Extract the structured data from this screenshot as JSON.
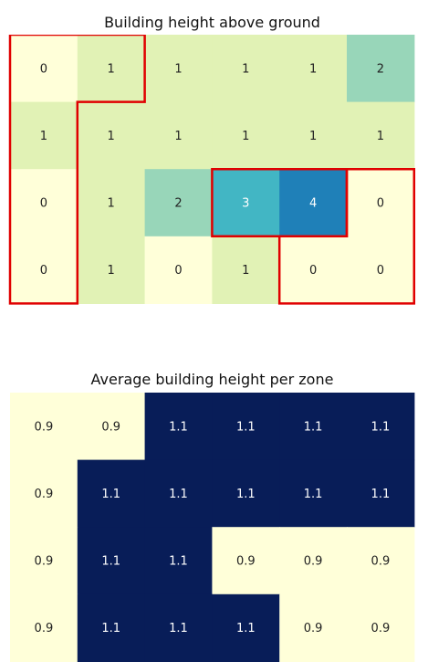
{
  "chart_data": [
    {
      "type": "heatmap",
      "title": "Building height above ground",
      "rows": 4,
      "cols": 6,
      "values": [
        [
          0,
          1,
          1,
          1,
          1,
          2
        ],
        [
          1,
          1,
          1,
          1,
          1,
          1
        ],
        [
          0,
          1,
          2,
          3,
          4,
          0
        ],
        [
          0,
          1,
          0,
          1,
          0,
          0
        ]
      ],
      "labels": [
        [
          "0",
          "1",
          "1",
          "1",
          "1",
          "2"
        ],
        [
          "1",
          "1",
          "1",
          "1",
          "1",
          "1"
        ],
        [
          "0",
          "1",
          "2",
          "3",
          "4",
          "0"
        ],
        [
          "0",
          "1",
          "0",
          "1",
          "0",
          "0"
        ]
      ],
      "colorscale": "YlGnBu",
      "vmin": 0,
      "vmax": 4,
      "grid": false,
      "zones_outlined": {
        "color": "#e00000",
        "zones": [
          [
            [
              0,
              0
            ],
            [
              0,
              1
            ],
            [
              1,
              0
            ],
            [
              2,
              0
            ],
            [
              3,
              0
            ]
          ],
          [
            [
              2,
              3
            ],
            [
              2,
              4
            ]
          ],
          [
            [
              2,
              5
            ],
            [
              3,
              4
            ],
            [
              3,
              5
            ]
          ]
        ]
      }
    },
    {
      "type": "heatmap",
      "title": "Average building height per zone",
      "rows": 4,
      "cols": 6,
      "values": [
        [
          0.9,
          0.9,
          1.1,
          1.1,
          1.1,
          1.1
        ],
        [
          0.9,
          1.1,
          1.1,
          1.1,
          1.1,
          1.1
        ],
        [
          0.9,
          1.1,
          1.1,
          0.9,
          0.9,
          0.9
        ],
        [
          0.9,
          1.1,
          1.1,
          1.1,
          0.9,
          0.9
        ]
      ],
      "labels": [
        [
          "0.9",
          "0.9",
          "1.1",
          "1.1",
          "1.1",
          "1.1"
        ],
        [
          "0.9",
          "1.1",
          "1.1",
          "1.1",
          "1.1",
          "1.1"
        ],
        [
          "0.9",
          "1.1",
          "1.1",
          "0.9",
          "0.9",
          "0.9"
        ],
        [
          "0.9",
          "1.1",
          "1.1",
          "1.1",
          "0.9",
          "0.9"
        ]
      ],
      "colorscale": "YlGnBu",
      "grid": false
    }
  ],
  "colors": {
    "top_scale": [
      "#ffffd9",
      "#e1f2b5",
      "#98d6b9",
      "#42b6c4",
      "#1f80b8"
    ],
    "bottom_low": "#ffffd9",
    "bottom_high": "#081d58",
    "text_dark": "#222222",
    "text_light": "#ffffff"
  }
}
